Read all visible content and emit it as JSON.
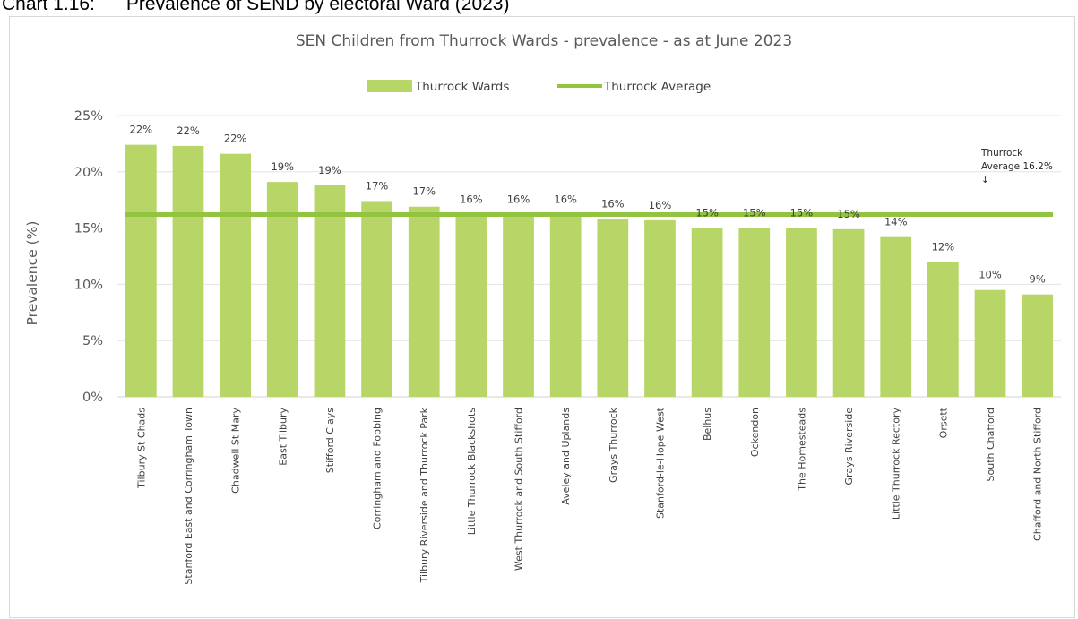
{
  "caption": "Chart 1.16:      Prevalence of SEND by electoral Ward (2023)",
  "chart_data": {
    "type": "bar",
    "title": "SEN Children from Thurrock Wards - prevalence -  as at June 2023",
    "ylabel": "Prevalence (%)",
    "xlabel": "",
    "ylim": [
      0,
      25
    ],
    "yticks": [
      0,
      5,
      10,
      15,
      20,
      25
    ],
    "ytick_labels": [
      "0%",
      "5%",
      "10%",
      "15%",
      "20%",
      "25%"
    ],
    "grid": true,
    "legend_position": "top",
    "categories": [
      "Tilbury St Chads",
      "Stanford East and Corringham Town",
      "Chadwell St Mary",
      "East Tilbury",
      "Stifford Clays",
      "Corringham and Fobbing",
      "Tilbury Riverside and Thurrock Park",
      "Little Thurrock Blackshots",
      "West Thurrock and South Stifford",
      "Aveley and Uplands",
      "Grays Thurrock",
      "Stanford-le-Hope West",
      "Belhus",
      "Ockendon",
      "The Homesteads",
      "Grays Riverside",
      "Little Thurrock Rectory",
      "Orsett",
      "South Chafford",
      "Chafford and North Stifford"
    ],
    "series": [
      {
        "name": "Thurrock Wards",
        "kind": "bar",
        "color": "#b8d668",
        "values": [
          22.4,
          22.3,
          21.6,
          19.1,
          18.8,
          17.4,
          16.9,
          16.2,
          16.2,
          16.2,
          15.8,
          15.7,
          15.0,
          15.0,
          15.0,
          14.9,
          14.2,
          12.0,
          9.5,
          9.1
        ],
        "data_labels": [
          "22%",
          "22%",
          "22%",
          "19%",
          "19%",
          "17%",
          "17%",
          "16%",
          "16%",
          "16%",
          "16%",
          "16%",
          "15%",
          "15%",
          "15%",
          "15%",
          "14%",
          "12%",
          "10%",
          "9%"
        ]
      },
      {
        "name": "Thurrock Average",
        "kind": "line",
        "color": "#92c43f",
        "value": 16.2
      }
    ],
    "annotation": {
      "line1": "Thurrock",
      "line2": "Average 16.2%",
      "arrow": "↓"
    }
  }
}
